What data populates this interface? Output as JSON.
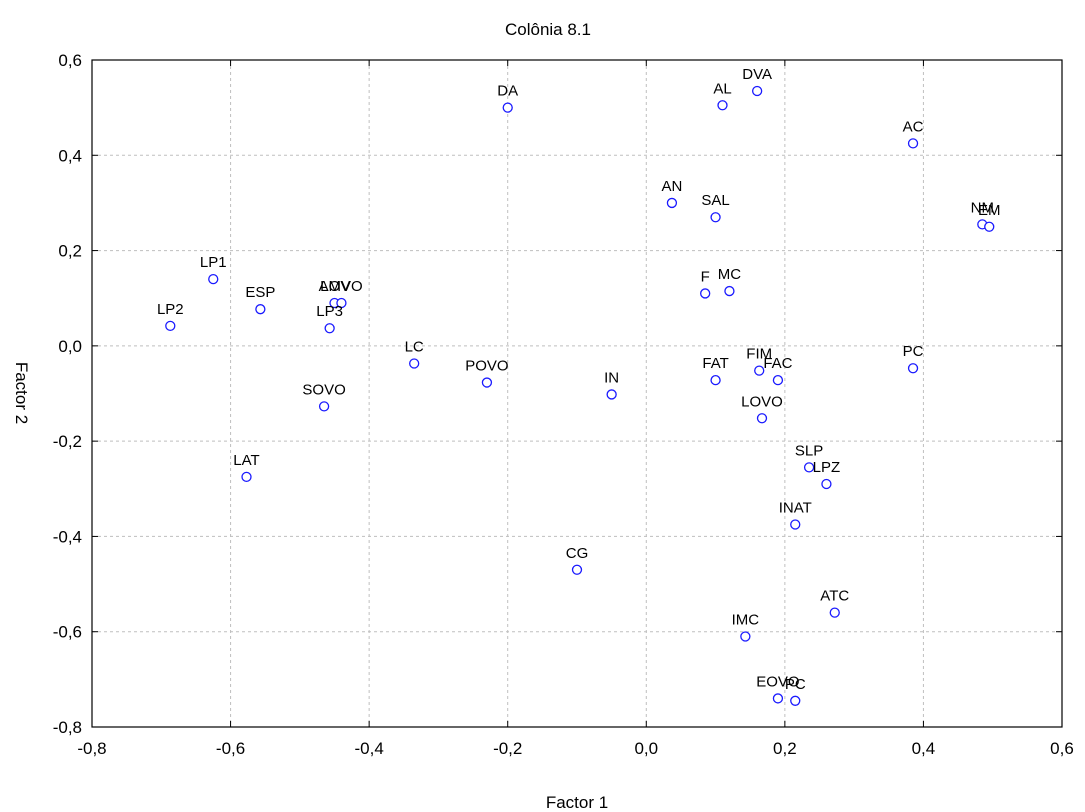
{
  "chart_data": {
    "type": "scatter",
    "title": "Colônia 8.1",
    "xlabel": "Factor 1",
    "ylabel": "Factor 2",
    "xlim": [
      -0.8,
      0.6
    ],
    "ylim": [
      -0.8,
      0.6
    ],
    "x_ticks": [
      "-0,8",
      "-0,6",
      "-0,4",
      "-0,2",
      "0,0",
      "0,2",
      "0,4",
      "0,6"
    ],
    "y_ticks": [
      "0,6",
      "0,4",
      "0,2",
      "0,0",
      "-0,2",
      "-0,4",
      "-0,6",
      "-0,8"
    ],
    "grid": true,
    "marker_color": "#1a1aff",
    "points": [
      {
        "label": "DA",
        "x": -0.2,
        "y": 0.5
      },
      {
        "label": "AL",
        "x": 0.11,
        "y": 0.505
      },
      {
        "label": "DVA",
        "x": 0.16,
        "y": 0.535
      },
      {
        "label": "AC",
        "x": 0.385,
        "y": 0.425
      },
      {
        "label": "AN",
        "x": 0.037,
        "y": 0.3
      },
      {
        "label": "SAL",
        "x": 0.1,
        "y": 0.27
      },
      {
        "label": "NM",
        "x": 0.485,
        "y": 0.255
      },
      {
        "label": "EM",
        "x": 0.495,
        "y": 0.25
      },
      {
        "label": "LP1",
        "x": -0.625,
        "y": 0.14
      },
      {
        "label": "ESP",
        "x": -0.557,
        "y": 0.077
      },
      {
        "label": "LP2",
        "x": -0.687,
        "y": 0.042
      },
      {
        "label": "AOV",
        "x": -0.45,
        "y": 0.09
      },
      {
        "label": "LMVO",
        "x": -0.44,
        "y": 0.09
      },
      {
        "label": "LP3",
        "x": -0.457,
        "y": 0.037
      },
      {
        "label": "F",
        "x": 0.085,
        "y": 0.11
      },
      {
        "label": "MC",
        "x": 0.12,
        "y": 0.115
      },
      {
        "label": "LC",
        "x": -0.335,
        "y": -0.037
      },
      {
        "label": "POVO",
        "x": -0.23,
        "y": -0.077
      },
      {
        "label": "IN",
        "x": -0.05,
        "y": -0.102
      },
      {
        "label": "FAT",
        "x": 0.1,
        "y": -0.072
      },
      {
        "label": "FIM",
        "x": 0.163,
        "y": -0.052
      },
      {
        "label": "FAC",
        "x": 0.19,
        "y": -0.072
      },
      {
        "label": "PC",
        "x": 0.385,
        "y": -0.047
      },
      {
        "label": "SOVO",
        "x": -0.465,
        "y": -0.127
      },
      {
        "label": "LOVO",
        "x": 0.167,
        "y": -0.152
      },
      {
        "label": "LAT",
        "x": -0.577,
        "y": -0.275
      },
      {
        "label": "SLP",
        "x": 0.235,
        "y": -0.255
      },
      {
        "label": "LPZ",
        "x": 0.26,
        "y": -0.29
      },
      {
        "label": "INAT",
        "x": 0.215,
        "y": -0.375
      },
      {
        "label": "CG",
        "x": -0.1,
        "y": -0.47
      },
      {
        "label": "ATC",
        "x": 0.272,
        "y": -0.56
      },
      {
        "label": "IMC",
        "x": 0.143,
        "y": -0.61
      },
      {
        "label": "EOVO",
        "x": 0.19,
        "y": -0.74
      },
      {
        "label": "PC",
        "x": 0.215,
        "y": -0.745
      }
    ]
  }
}
